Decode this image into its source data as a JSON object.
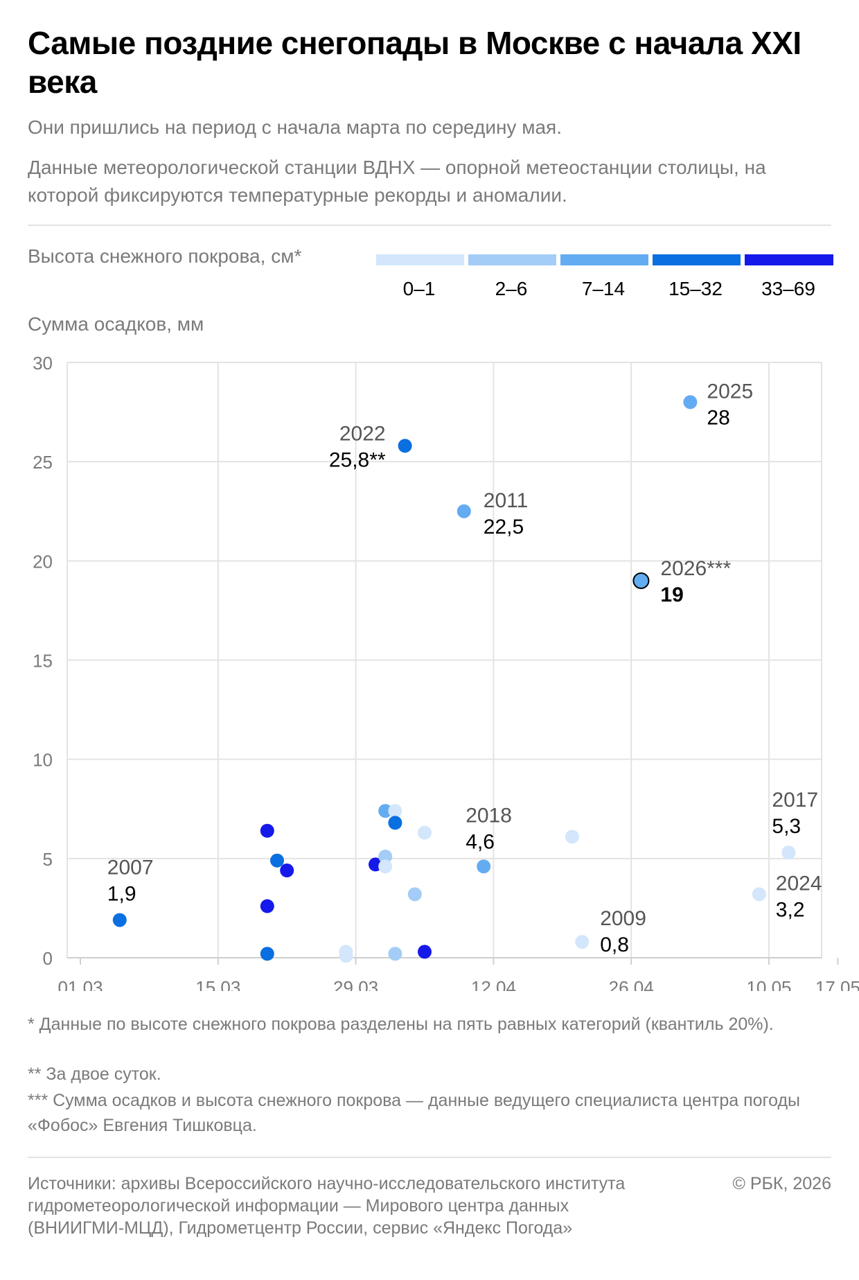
{
  "title": "Самые поздние снегопады в Москве с начала XXI века",
  "subtitle": "Они пришлись на период с начала марта по середину мая.",
  "description": "Данные метеорологической станции ВДНХ — опорной метеостанции столицы, на которой фиксируются температурные рекорды и аномалии.",
  "legend": {
    "title": "Высота снежного покрова, см*",
    "items": [
      {
        "label": "0–1",
        "color": "#d3e6fb"
      },
      {
        "label": "2–6",
        "color": "#a3cdf6"
      },
      {
        "label": "7–14",
        "color": "#64acf1"
      },
      {
        "label": "15–32",
        "color": "#0a6fe0"
      },
      {
        "label": "33–69",
        "color": "#1519ea"
      }
    ]
  },
  "chart_data": {
    "type": "scatter",
    "ylabel": "Сумма осадков, мм",
    "xlim": [
      "2026-03-01",
      "2026-05-17"
    ],
    "ylim": [
      0,
      30
    ],
    "yticks": [
      "0",
      "5",
      "10",
      "15",
      "20",
      "25",
      "30"
    ],
    "xticks": [
      {
        "label": "01.03",
        "date": "2026-03-01"
      },
      {
        "label": "15.03",
        "date": "2026-03-15"
      },
      {
        "label": "29.03",
        "date": "2026-03-29"
      },
      {
        "label": "12.04",
        "date": "2026-04-12"
      },
      {
        "label": "26.04",
        "date": "2026-04-26"
      },
      {
        "label": "10.05",
        "date": "2026-05-10"
      },
      {
        "label": "17.05",
        "date": "2026-05-17"
      }
    ],
    "grid": true,
    "points": [
      {
        "date": "2026-03-05",
        "y": 1.9,
        "cat": 3,
        "year": "2007",
        "value_label": "1,9"
      },
      {
        "date": "2026-03-20",
        "y": 6.4,
        "cat": 4
      },
      {
        "date": "2026-03-20",
        "y": 2.6,
        "cat": 4
      },
      {
        "date": "2026-03-20",
        "y": 0.2,
        "cat": 3
      },
      {
        "date": "2026-03-21",
        "y": 4.9,
        "cat": 3
      },
      {
        "date": "2026-03-22",
        "y": 4.4,
        "cat": 4
      },
      {
        "date": "2026-03-28",
        "y": 0.3,
        "cat": 0
      },
      {
        "date": "2026-03-28",
        "y": 0.1,
        "cat": 0
      },
      {
        "date": "2026-03-31",
        "y": 4.7,
        "cat": 4
      },
      {
        "date": "2026-04-01",
        "y": 7.4,
        "cat": 2
      },
      {
        "date": "2026-04-01",
        "y": 5.1,
        "cat": 1
      },
      {
        "date": "2026-04-01",
        "y": 4.6,
        "cat": 0
      },
      {
        "date": "2026-04-02",
        "y": 7.4,
        "cat": 0
      },
      {
        "date": "2026-04-02",
        "y": 6.8,
        "cat": 3
      },
      {
        "date": "2026-04-02",
        "y": 0.2,
        "cat": 1
      },
      {
        "date": "2026-04-03",
        "y": 25.8,
        "cat": 3,
        "year": "2022",
        "value_label": "25,8**"
      },
      {
        "date": "2026-04-04",
        "y": 3.2,
        "cat": 1
      },
      {
        "date": "2026-04-05",
        "y": 6.3,
        "cat": 0
      },
      {
        "date": "2026-04-05",
        "y": 0.3,
        "cat": 4
      },
      {
        "date": "2026-04-09",
        "y": 22.5,
        "cat": 2,
        "year": "2011",
        "value_label": "22,5"
      },
      {
        "date": "2026-04-11",
        "y": 4.6,
        "cat": 2,
        "year": "2018",
        "value_label": "4,6"
      },
      {
        "date": "2026-04-20",
        "y": 6.1,
        "cat": 0
      },
      {
        "date": "2026-04-21",
        "y": 0.8,
        "cat": 0,
        "year": "2009",
        "value_label": "0,8"
      },
      {
        "date": "2026-04-27",
        "y": 19,
        "cat": 2,
        "year": "2026***",
        "value_label": "19",
        "highlight": true
      },
      {
        "date": "2026-05-02",
        "y": 28,
        "cat": 2,
        "year": "2025",
        "value_label": "28"
      },
      {
        "date": "2026-05-09",
        "y": 3.2,
        "cat": 0,
        "year": "2024",
        "value_label": "3,2"
      },
      {
        "date": "2026-05-12",
        "y": 5.3,
        "cat": 0,
        "year": "2017",
        "value_label": "5,3"
      }
    ]
  },
  "footnotes": [
    "* Данные по высоте снежного покрова разделены на пять равных категорий (квантиль 20%).",
    "** За двое суток.",
    "*** Сумма осадков и высота снежного покрова — данные ведущего специалиста центра погоды «Фобос» Евгения Тишковца."
  ],
  "source": "Источники: архивы Всероссийского научно-исследовательского института гидрометеорологической информации — Мирового центра данных (ВНИИГМИ-МЦД), Гидрометцентр России, сервис «Яндекс Погода»",
  "copyright": "© РБК, 2026"
}
